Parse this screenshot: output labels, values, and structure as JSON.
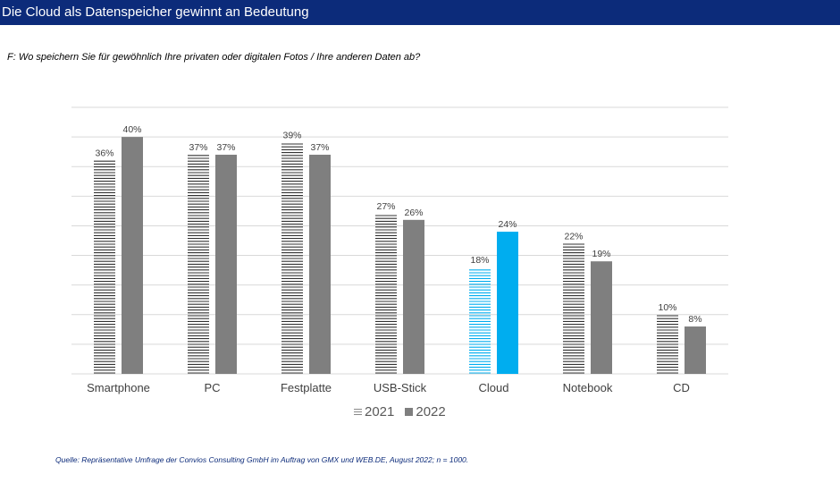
{
  "header": {
    "title": "Die Cloud als Datenspeicher gewinnt an Bedeutung"
  },
  "question": "F: Wo speichern Sie für gewöhnlich Ihre privaten oder digitalen Fotos / Ihre anderen Daten ab?",
  "source": "Quelle: Repräsentative Umfrage der Convios Consulting GmbH im Auftrag von GMX und WEB.DE, August 2022; n = 1000.",
  "chart_data": {
    "type": "bar",
    "categories": [
      "Smartphone",
      "PC",
      "Festplatte",
      "USB-Stick",
      "Cloud",
      "Notebook",
      "CD"
    ],
    "series": [
      {
        "name": "2021",
        "values": [
          36,
          37,
          39,
          27,
          18,
          22,
          10
        ],
        "value_labels": [
          "36%",
          "37%",
          "39%",
          "27%",
          "18%",
          "22%",
          "10%"
        ],
        "pattern": "horizontal-stripes"
      },
      {
        "name": "2022",
        "values": [
          40,
          37,
          37,
          26,
          24,
          19,
          8
        ],
        "value_labels": [
          "40%",
          "37%",
          "37%",
          "26%",
          "24%",
          "19%",
          "8%"
        ],
        "pattern": "solid"
      }
    ],
    "ylim": [
      0,
      45
    ],
    "grid": true,
    "legend_position": "bottom-center",
    "colors": {
      "default": "#7f7f7f",
      "highlight": "#00adef",
      "stripe_2021": "#333333",
      "grid": "#d9d9d9"
    },
    "highlight_category": "Cloud"
  }
}
